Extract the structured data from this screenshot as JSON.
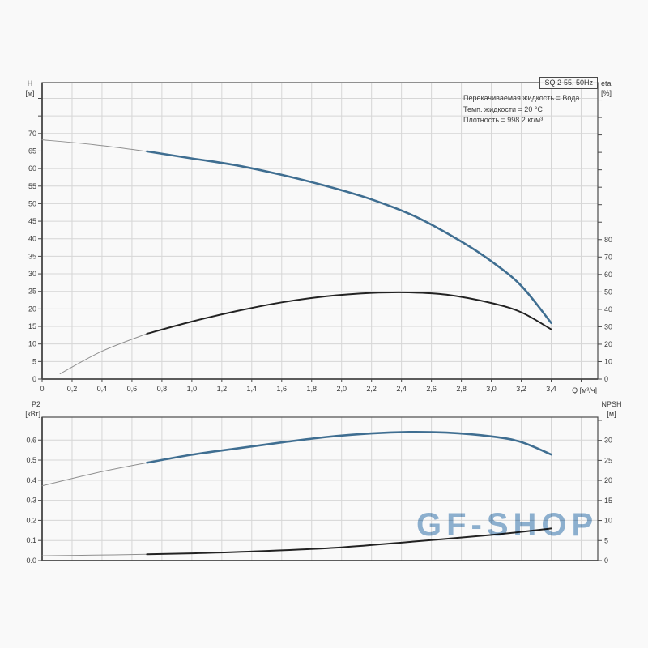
{
  "header": {
    "title_box": "SQ 2-55, 50Hz",
    "info_lines": [
      "Перекачиваемая жидкость = Вода",
      "Темп. жидкости = 20 °C",
      "Плотность = 998.2 кг/м³"
    ]
  },
  "watermark": "GF-SHOP",
  "colors": {
    "curve_blue": "#3f6e91",
    "curve_black": "#222222",
    "thin_gray": "#8f8f8f",
    "grid": "#d6d6d6",
    "axis": "#4a4a4a",
    "label": "#3a3a3a"
  },
  "chart_data": [
    {
      "type": "line",
      "title": "SQ 2-55, 50Hz",
      "name": "head-efficiency-chart",
      "x_axis": {
        "title": "Q [м³/ч]",
        "min": 0,
        "max": 3.711,
        "grid_step": 0.2,
        "tick_step": 0.2,
        "tick_labels": [
          "0",
          "0,2",
          "0,4",
          "0,6",
          "0,8",
          "1,0",
          "1,2",
          "1,4",
          "1,6",
          "1,8",
          "2,0",
          "2,2",
          "2,4",
          "2,6",
          "2,8",
          "3,0",
          "3,2",
          "3,4"
        ]
      },
      "y_left": {
        "title": "H",
        "unit": "[м]",
        "min": 0,
        "max": 84.5,
        "tick_step": 5,
        "tick_labels": [
          "0",
          "5",
          "10",
          "15",
          "20",
          "25",
          "30",
          "35",
          "40",
          "45",
          "50",
          "55",
          "60",
          "65",
          "70"
        ]
      },
      "y_right": {
        "title": "eta",
        "unit": "[%]",
        "min": 0,
        "max": 170,
        "tick_step": 10,
        "tick_labels": [
          "0",
          "10",
          "20",
          "30",
          "40",
          "50",
          "60",
          "70",
          "80"
        ]
      },
      "grid": true,
      "legend": "none",
      "series": [
        {
          "name": "H-curve",
          "axis": "left",
          "color": "blue",
          "thin_until": 0.7,
          "points": [
            [
              0,
              68.2
            ],
            [
              0.35,
              66.8
            ],
            [
              0.7,
              64.9
            ],
            [
              1.0,
              62.9
            ],
            [
              1.3,
              60.9
            ],
            [
              1.6,
              58.2
            ],
            [
              1.9,
              55.0
            ],
            [
              2.2,
              51.2
            ],
            [
              2.5,
              46.2
            ],
            [
              2.8,
              39.2
            ],
            [
              3.0,
              33.6
            ],
            [
              3.2,
              26.6
            ],
            [
              3.4,
              16.0
            ]
          ]
        },
        {
          "name": "eta-curve",
          "axis": "right",
          "color": "black",
          "thin_until": 0.7,
          "points": [
            [
              0.12,
              3
            ],
            [
              0.4,
              16
            ],
            [
              0.7,
              26
            ],
            [
              1.0,
              33
            ],
            [
              1.3,
              39
            ],
            [
              1.6,
              44
            ],
            [
              1.9,
              47.5
            ],
            [
              2.2,
              49.4
            ],
            [
              2.45,
              49.7
            ],
            [
              2.7,
              48.4
            ],
            [
              3.0,
              43.6
            ],
            [
              3.2,
              38.3
            ],
            [
              3.4,
              28.5
            ]
          ]
        }
      ]
    },
    {
      "type": "line",
      "title": "",
      "name": "power-npsh-chart",
      "x_axis": {
        "title": "",
        "min": 0,
        "max": 3.711,
        "grid_step": 0.2,
        "tick_step": 0.2,
        "tick_labels": []
      },
      "y_left": {
        "title": "P2",
        "unit": "[кВт]",
        "min": 0,
        "max": 0.714,
        "tick_step": 0.1,
        "tick_labels": [
          "0.0",
          "0.1",
          "0.2",
          "0.3",
          "0.4",
          "0.5",
          "0.6"
        ]
      },
      "y_right": {
        "title": "NPSH",
        "unit": "[м]",
        "min": 0,
        "max": 35.8,
        "tick_step": 5,
        "tick_labels": [
          "0",
          "5",
          "10",
          "15",
          "20",
          "25",
          "30"
        ]
      },
      "grid": true,
      "legend": "none",
      "series": [
        {
          "name": "P2-curve",
          "axis": "left",
          "color": "blue",
          "thin_until": 0.7,
          "points": [
            [
              0,
              0.372
            ],
            [
              0.35,
              0.435
            ],
            [
              0.7,
              0.487
            ],
            [
              1.0,
              0.527
            ],
            [
              1.3,
              0.558
            ],
            [
              1.6,
              0.588
            ],
            [
              1.9,
              0.615
            ],
            [
              2.2,
              0.633
            ],
            [
              2.45,
              0.64
            ],
            [
              2.7,
              0.637
            ],
            [
              3.0,
              0.618
            ],
            [
              3.2,
              0.59
            ],
            [
              3.4,
              0.528
            ]
          ]
        },
        {
          "name": "NPSH-curve",
          "axis": "right",
          "color": "black",
          "thin_until": 0.7,
          "points": [
            [
              0,
              1.2
            ],
            [
              0.35,
              1.35
            ],
            [
              0.7,
              1.55
            ],
            [
              1.0,
              1.8
            ],
            [
              1.5,
              2.4
            ],
            [
              2.0,
              3.3
            ],
            [
              2.5,
              4.8
            ],
            [
              3.0,
              6.4
            ],
            [
              3.4,
              8.0
            ]
          ]
        }
      ]
    }
  ]
}
